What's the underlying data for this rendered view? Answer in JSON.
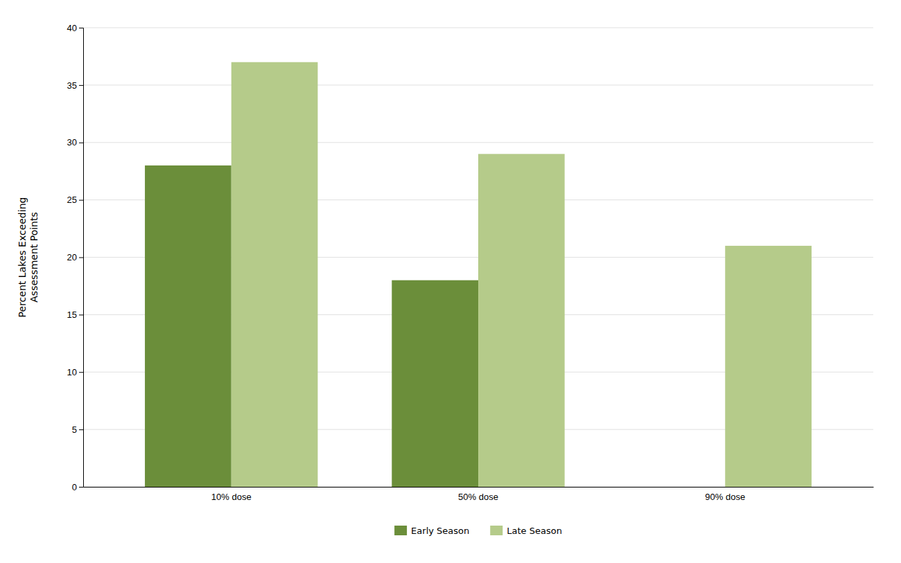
{
  "chart_data": {
    "type": "bar",
    "categories": [
      "10% dose",
      "50% dose",
      "90% dose"
    ],
    "series": [
      {
        "name": "Early Season",
        "color": "#6B8E3A",
        "values": [
          28,
          18,
          0
        ]
      },
      {
        "name": "Late Season",
        "color": "#B5CB8A",
        "values": [
          37,
          29,
          21
        ]
      }
    ],
    "ylabel": "Percent Lakes Exceeding\nAssessment Points",
    "ylim": [
      0,
      40
    ],
    "yticks": [
      0,
      5,
      10,
      15,
      20,
      25,
      30,
      35,
      40
    ],
    "grid": true,
    "legend": "bottom"
  }
}
